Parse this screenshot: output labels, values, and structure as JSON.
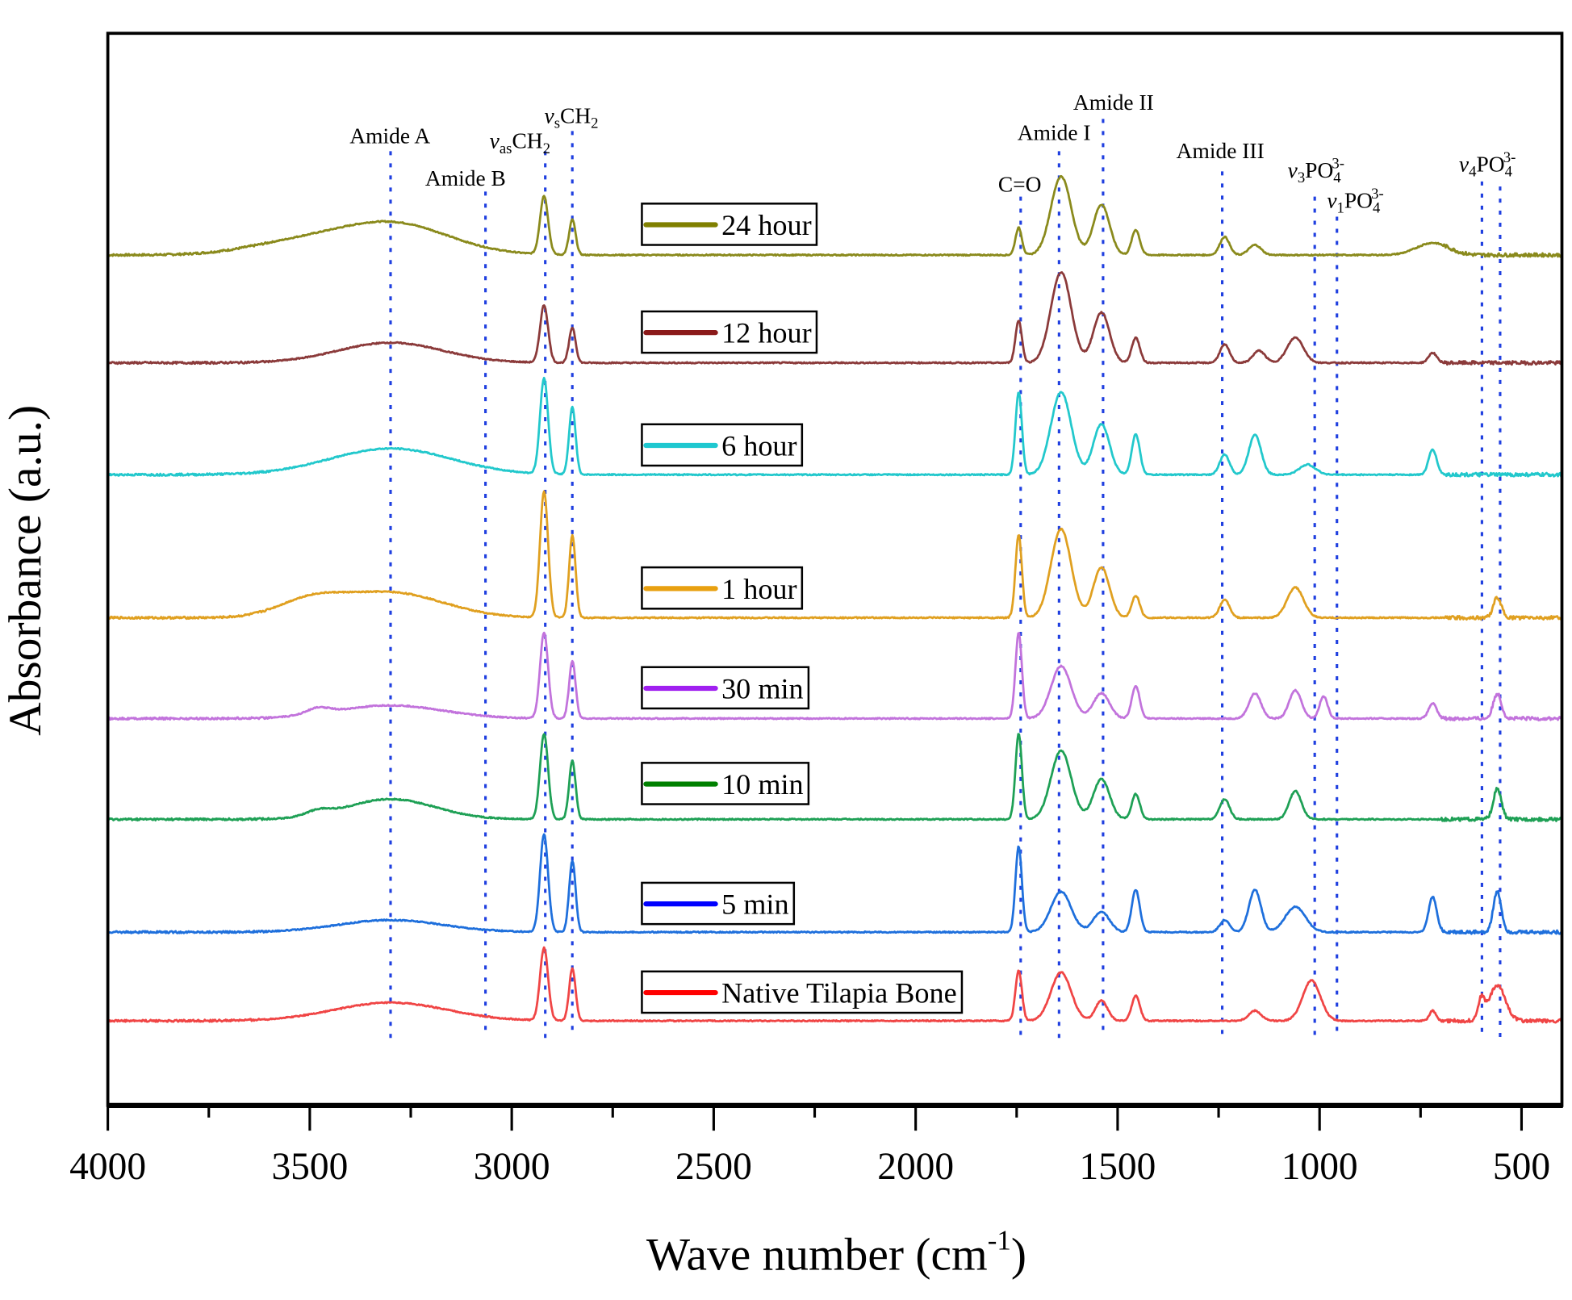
{
  "chart_data": {
    "type": "line",
    "title": "",
    "xlabel": "Wave number (cm",
    "xlabel_sup": "-1",
    "xlabel_close": ")",
    "ylabel": "Absorbance (a.u.)",
    "xlim": [
      4000,
      400
    ],
    "x_reversed": true,
    "ylim": [
      0,
      10.64
    ],
    "x_ticks": [
      4000,
      3500,
      3000,
      2500,
      2000,
      1500,
      1000,
      500
    ],
    "x_tick_labels": [
      "4000",
      "3500",
      "3000",
      "2500",
      "2000",
      "1500",
      "1000",
      "500"
    ],
    "y_ticks_shown": false,
    "grid": false,
    "legend_placement": "inline, left of each trace",
    "annotation_line_color": "#1f3fe0",
    "series": [
      {
        "name": "24 hour",
        "color": "#8a8a1c",
        "legend_color": "#808000",
        "offset": 8.44,
        "peaks": [
          [
            3300,
            0.32,
            140
          ],
          [
            3550,
            0.1,
            120
          ],
          [
            2920,
            0.58,
            10
          ],
          [
            2850,
            0.35,
            8
          ],
          [
            1745,
            0.27,
            8
          ],
          [
            1640,
            0.78,
            25
          ],
          [
            1540,
            0.5,
            20
          ],
          [
            1455,
            0.25,
            10
          ],
          [
            1235,
            0.18,
            12
          ],
          [
            1160,
            0.1,
            15
          ],
          [
            720,
            0.12,
            40
          ]
        ]
      },
      {
        "name": "12 hour",
        "color": "#8b3a3a",
        "legend_color": "#8b1a1a",
        "offset": 7.37,
        "peaks": [
          [
            3300,
            0.2,
            130
          ],
          [
            2920,
            0.57,
            10
          ],
          [
            2850,
            0.35,
            8
          ],
          [
            1745,
            0.42,
            8
          ],
          [
            1640,
            0.9,
            25
          ],
          [
            1540,
            0.5,
            20
          ],
          [
            1455,
            0.25,
            10
          ],
          [
            1235,
            0.18,
            12
          ],
          [
            1150,
            0.12,
            15
          ],
          [
            1060,
            0.25,
            20
          ],
          [
            720,
            0.1,
            10
          ]
        ]
      },
      {
        "name": "6 hour",
        "color": "#22c8cc",
        "legend_color": "#1ec8d0",
        "offset": 6.26,
        "peaks": [
          [
            3300,
            0.26,
            150
          ],
          [
            2920,
            0.95,
            10
          ],
          [
            2850,
            0.67,
            8
          ],
          [
            1745,
            0.82,
            8
          ],
          [
            1640,
            0.82,
            25
          ],
          [
            1540,
            0.5,
            20
          ],
          [
            1455,
            0.4,
            10
          ],
          [
            1235,
            0.2,
            12
          ],
          [
            1160,
            0.4,
            15
          ],
          [
            1030,
            0.1,
            20
          ],
          [
            720,
            0.25,
            10
          ]
        ]
      },
      {
        "name": "1 hour",
        "color": "#e0a020",
        "legend_color": "#e8a010",
        "offset": 4.84,
        "peaks": [
          [
            3300,
            0.25,
            130
          ],
          [
            3500,
            0.15,
            80
          ],
          [
            2920,
            1.25,
            10
          ],
          [
            2850,
            0.82,
            8
          ],
          [
            1745,
            0.82,
            8
          ],
          [
            1640,
            0.88,
            25
          ],
          [
            1540,
            0.5,
            20
          ],
          [
            1455,
            0.22,
            10
          ],
          [
            1235,
            0.18,
            12
          ],
          [
            1060,
            0.3,
            20
          ],
          [
            560,
            0.2,
            10
          ]
        ]
      },
      {
        "name": "30 min",
        "color": "#c273dc",
        "legend_color": "#a020f0",
        "offset": 3.84,
        "peaks": [
          [
            3300,
            0.13,
            130
          ],
          [
            3480,
            0.06,
            30
          ],
          [
            2920,
            0.85,
            10
          ],
          [
            2850,
            0.57,
            8
          ],
          [
            1745,
            0.85,
            8
          ],
          [
            1640,
            0.52,
            25
          ],
          [
            1540,
            0.25,
            20
          ],
          [
            1455,
            0.32,
            10
          ],
          [
            1160,
            0.25,
            15
          ],
          [
            1060,
            0.28,
            15
          ],
          [
            990,
            0.22,
            10
          ],
          [
            720,
            0.15,
            10
          ],
          [
            560,
            0.25,
            10
          ]
        ]
      },
      {
        "name": "10 min",
        "color": "#1ea055",
        "legend_color": "#008000",
        "offset": 2.84,
        "peaks": [
          [
            3300,
            0.2,
            110
          ],
          [
            3480,
            0.05,
            30
          ],
          [
            2920,
            0.85,
            10
          ],
          [
            2850,
            0.58,
            8
          ],
          [
            1745,
            0.85,
            8
          ],
          [
            1640,
            0.68,
            25
          ],
          [
            1540,
            0.4,
            20
          ],
          [
            1455,
            0.25,
            10
          ],
          [
            1235,
            0.2,
            12
          ],
          [
            1060,
            0.28,
            15
          ],
          [
            560,
            0.3,
            10
          ]
        ]
      },
      {
        "name": "5 min",
        "color": "#1e6fdc",
        "legend_color": "#0000ff",
        "offset": 1.72,
        "peaks": [
          [
            3300,
            0.12,
            130
          ],
          [
            2920,
            0.97,
            10
          ],
          [
            2850,
            0.71,
            8
          ],
          [
            1745,
            0.85,
            8
          ],
          [
            1640,
            0.4,
            25
          ],
          [
            1540,
            0.2,
            20
          ],
          [
            1455,
            0.42,
            10
          ],
          [
            1235,
            0.12,
            12
          ],
          [
            1160,
            0.42,
            15
          ],
          [
            1060,
            0.25,
            25
          ],
          [
            720,
            0.35,
            10
          ],
          [
            560,
            0.4,
            10
          ]
        ]
      },
      {
        "name": "Native Tilapia Bone",
        "color": "#f04545",
        "legend_color": "#ff0000",
        "offset": 0.84,
        "peaks": [
          [
            3300,
            0.18,
            140
          ],
          [
            2920,
            0.72,
            10
          ],
          [
            2850,
            0.52,
            8
          ],
          [
            1745,
            0.5,
            8
          ],
          [
            1640,
            0.48,
            25
          ],
          [
            1540,
            0.2,
            15
          ],
          [
            1455,
            0.25,
            10
          ],
          [
            1160,
            0.1,
            15
          ],
          [
            1020,
            0.4,
            22
          ],
          [
            720,
            0.1,
            8
          ],
          [
            600,
            0.2,
            8
          ],
          [
            560,
            0.35,
            20
          ]
        ]
      }
    ],
    "annotations": [
      {
        "x": 3300,
        "parts": [
          {
            "t": "Amide A"
          }
        ]
      },
      {
        "x": 3065,
        "parts": [
          {
            "t": "Amide B"
          }
        ]
      },
      {
        "x": 2917,
        "parts": [
          {
            "t": "v",
            "i": true
          },
          {
            "t": "as",
            "sub": true
          },
          {
            "t": "CH"
          },
          {
            "t": "2",
            "sub": true
          }
        ]
      },
      {
        "x": 2850,
        "parts": [
          {
            "t": "v",
            "i": true
          },
          {
            "t": "s",
            "sub": true
          },
          {
            "t": "CH"
          },
          {
            "t": "2",
            "sub": true
          }
        ]
      },
      {
        "x": 1740,
        "parts": [
          {
            "t": "C=O"
          }
        ]
      },
      {
        "x": 1645,
        "parts": [
          {
            "t": "Amide I"
          }
        ]
      },
      {
        "x": 1536,
        "parts": [
          {
            "t": "Amide II"
          }
        ]
      },
      {
        "x": 1241,
        "parts": [
          {
            "t": "Amide III"
          }
        ]
      },
      {
        "x": 1012,
        "parts": [
          {
            "t": "v",
            "i": true
          },
          {
            "t": "3",
            "sub": true
          },
          {
            "t": "PO"
          },
          {
            "t": "4",
            "sub": true
          },
          {
            "t": "3-",
            "sup": true
          }
        ]
      },
      {
        "x": 957,
        "parts": [
          {
            "t": "v",
            "i": true
          },
          {
            "t": "1",
            "sub": true
          },
          {
            "t": "PO"
          },
          {
            "t": "4",
            "sub": true
          },
          {
            "t": "3-",
            "sup": true
          }
        ]
      },
      {
        "x": 598,
        "parts": [
          {
            "t": "v",
            "i": true
          },
          {
            "t": "4",
            "sub": true
          },
          {
            "t": "PO"
          },
          {
            "t": "4",
            "sub": true
          },
          {
            "t": "3-",
            "sup": true
          }
        ]
      },
      {
        "x": 553,
        "parts": []
      }
    ]
  }
}
